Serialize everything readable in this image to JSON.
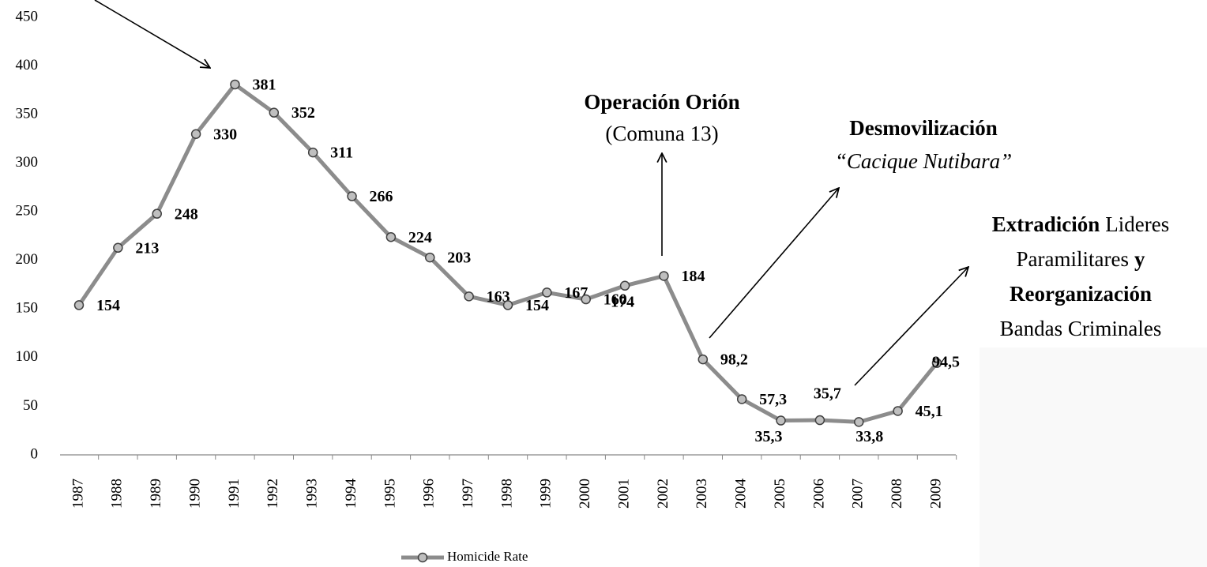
{
  "chart_data": {
    "type": "line",
    "categories": [
      "1987",
      "1988",
      "1989",
      "1990",
      "1991",
      "1992",
      "1993",
      "1994",
      "1995",
      "1996",
      "1997",
      "1998",
      "1999",
      "2000",
      "2001",
      "2002",
      "2003",
      "2004",
      "2005",
      "2006",
      "2007",
      "2008",
      "2009"
    ],
    "series": [
      {
        "name": "Homicide Rate",
        "color": "#8c8c8c",
        "marker_color": "#bfbfbf",
        "values": [
          154,
          213,
          248,
          330,
          381,
          352,
          311,
          266,
          224,
          203,
          163,
          154,
          167,
          160,
          174,
          184,
          98.2,
          57.3,
          35.3,
          35.7,
          33.8,
          45.1,
          94.5
        ],
        "value_labels": [
          "154",
          "213",
          "248",
          "330",
          "381",
          "352",
          "311",
          "266",
          "224",
          "203",
          "163",
          "154",
          "167",
          "160",
          "174",
          "184",
          "98,2",
          "57,3",
          "35,3",
          "35,7",
          "33,8",
          "45,1",
          "94,5"
        ]
      }
    ],
    "ylim": [
      0,
      450
    ],
    "yticks": [
      0,
      50,
      100,
      150,
      200,
      250,
      300,
      350,
      400,
      450
    ],
    "legend": "bottom",
    "annotations": [
      {
        "lines": [
          [
            {
              "text": "Operación Orión",
              "bold": true
            }
          ],
          [
            {
              "text": "(Comuna 13)",
              "bold": false
            }
          ]
        ]
      },
      {
        "lines": [
          [
            {
              "text": "Desmovilización",
              "bold": true
            }
          ],
          [
            {
              "text": "“Cacique Nutibara”",
              "italic": true
            }
          ]
        ]
      },
      {
        "lines": [
          [
            {
              "text": "Extradición",
              "bold": true
            },
            {
              "text": "Lideres",
              "bold": false
            }
          ],
          [
            {
              "text": "Paramilitares",
              "bold": false
            },
            {
              "text": "y",
              "bold": true
            }
          ],
          [
            {
              "text": "Reorganización",
              "bold": true
            }
          ],
          [
            {
              "text": "Bandas Criminales",
              "bold": false
            }
          ]
        ]
      }
    ]
  }
}
